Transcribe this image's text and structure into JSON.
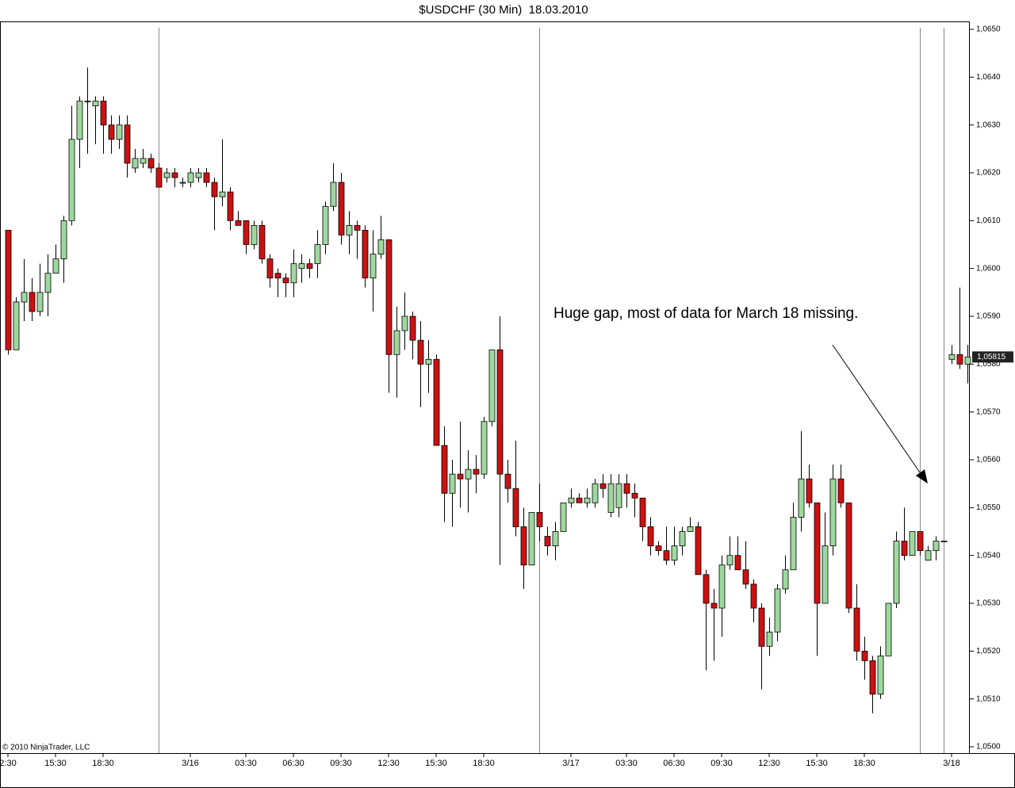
{
  "chart_data": {
    "type": "candlestick",
    "title": "$USDCHF (30 Min)  18.03.2010",
    "annotation": "Huge gap, most of data for March 18 missing.",
    "copyright": "© 2010 NinjaTrader, LLC",
    "up_color": "#9ed89e",
    "down_color": "#cc1111",
    "categories": [
      "2:30",
      null,
      null,
      null,
      null,
      null,
      "15:30",
      null,
      null,
      null,
      null,
      null,
      "18:30",
      null,
      null,
      null,
      null,
      null,
      null,
      null,
      null,
      null,
      null,
      "3/16",
      null,
      null,
      null,
      null,
      null,
      null,
      "03:30",
      null,
      null,
      null,
      null,
      null,
      "06:30",
      null,
      null,
      null,
      null,
      null,
      "09:30",
      null,
      null,
      null,
      null,
      null,
      "12:30",
      null,
      null,
      null,
      null,
      null,
      "15:30",
      null,
      null,
      null,
      null,
      null,
      "18:30",
      null,
      null,
      null,
      null,
      null,
      null,
      null,
      null,
      null,
      null,
      "3/17",
      null,
      null,
      null,
      null,
      null,
      null,
      "03:30",
      null,
      null,
      null,
      null,
      null,
      "06:30",
      null,
      null,
      null,
      null,
      null,
      "09:30",
      null,
      null,
      null,
      null,
      null,
      "12:30",
      null,
      null,
      null,
      null,
      null,
      "15:30",
      null,
      null,
      null,
      null,
      null,
      "18:30",
      null,
      null,
      null,
      null,
      null,
      null,
      null,
      null,
      null,
      null,
      "3/18",
      null,
      null
    ],
    "open": [
      1.0608,
      1.0583,
      1.0593,
      1.0595,
      1.0591,
      1.0595,
      1.0599,
      1.0602,
      1.061,
      1.0627,
      1.0635,
      1.0634,
      1.0635,
      1.063,
      1.0627,
      1.063,
      1.0621,
      1.0622,
      1.0623,
      1.0621,
      1.0619,
      1.062,
      1.0618,
      1.0618,
      1.0619,
      1.062,
      1.0618,
      1.0615,
      1.0616,
      1.061,
      1.061,
      1.0605,
      1.0609,
      1.0602,
      1.0599,
      1.0598,
      1.0597,
      1.06,
      1.0601,
      1.0601,
      1.0605,
      1.0613,
      1.0618,
      1.0607,
      1.0609,
      1.0608,
      1.0598,
      1.0603,
      1.0606,
      1.0582,
      1.0587,
      1.059,
      1.0585,
      1.058,
      1.0581,
      1.0563,
      1.0553,
      1.0557,
      1.0556,
      1.0558,
      1.0557,
      1.0568,
      1.0583,
      1.0557,
      1.0554,
      1.0546,
      1.0538,
      1.0549,
      1.0544,
      1.0542,
      1.0545,
      1.0551,
      1.0552,
      1.0551,
      1.0551,
      1.0555,
      1.0549,
      1.055,
      1.0555,
      1.0553,
      1.0552,
      1.0546,
      1.0542,
      1.0541,
      1.0539,
      1.0542,
      1.0545,
      1.0546,
      1.0536,
      1.053,
      1.0529,
      1.0538,
      1.054,
      1.0537,
      1.0534,
      1.0529,
      1.0521,
      1.0524,
      1.0533,
      1.0537,
      1.0548,
      1.0556,
      1.0551,
      1.053,
      1.0542,
      1.0556,
      1.0551,
      1.0529,
      1.052,
      1.0518,
      1.0511,
      1.0519,
      1.053,
      1.0543,
      1.054,
      1.0545,
      1.0539,
      1.0541,
      1.0543,
      1.0581,
      1.0582,
      1.058
    ],
    "high": [
      1.0608,
      1.0594,
      1.0602,
      1.0598,
      1.0601,
      1.0603,
      1.0605,
      1.0611,
      1.0634,
      1.0636,
      1.0642,
      1.0636,
      1.0636,
      1.0632,
      1.0632,
      1.0632,
      1.0625,
      1.0625,
      1.0624,
      1.0622,
      1.0621,
      1.0621,
      1.0619,
      1.0621,
      1.0621,
      1.0621,
      1.0619,
      1.0627,
      1.0617,
      1.0612,
      1.061,
      1.061,
      1.061,
      1.0603,
      1.06,
      1.0599,
      1.0604,
      1.0603,
      1.0602,
      1.0608,
      1.0614,
      1.0622,
      1.062,
      1.0612,
      1.061,
      1.0609,
      1.0608,
      1.0611,
      1.0606,
      1.0592,
      1.0595,
      1.0591,
      1.0589,
      1.0585,
      1.0582,
      1.0567,
      1.056,
      1.0568,
      1.0562,
      1.0561,
      1.0569,
      1.0583,
      1.059,
      1.056,
      1.0564,
      1.055,
      1.0549,
      1.0555,
      1.0546,
      1.0547,
      1.0551,
      1.0554,
      1.0553,
      1.0554,
      1.0556,
      1.0557,
      1.0557,
      1.0557,
      1.0557,
      1.0555,
      1.0552,
      1.0548,
      1.0543,
      1.0546,
      1.0546,
      1.0546,
      1.0548,
      1.0547,
      1.0537,
      1.0533,
      1.054,
      1.0544,
      1.0544,
      1.0543,
      1.0535,
      1.053,
      1.0527,
      1.0534,
      1.054,
      1.0551,
      1.0566,
      1.0559,
      1.0551,
      1.0549,
      1.0559,
      1.0559,
      1.0551,
      1.0534,
      1.0523,
      1.0519,
      1.0521,
      1.053,
      1.0545,
      1.055,
      1.0545,
      1.0545,
      1.0542,
      1.0544,
      1.0543,
      1.0584,
      1.0596,
      1.0584
    ],
    "low": [
      1.0582,
      1.0583,
      1.0589,
      1.0589,
      1.059,
      1.059,
      1.0599,
      1.0597,
      1.0609,
      1.0621,
      1.0624,
      1.0626,
      1.0624,
      1.0624,
      1.0625,
      1.0619,
      1.062,
      1.0621,
      1.062,
      1.0617,
      1.0618,
      1.0617,
      1.0617,
      1.0617,
      1.0618,
      1.0617,
      1.0608,
      1.0613,
      1.0608,
      1.0609,
      1.0603,
      1.0604,
      1.0601,
      1.0596,
      1.0594,
      1.0594,
      1.0594,
      1.0597,
      1.0598,
      1.0598,
      1.0603,
      1.0612,
      1.0605,
      1.0603,
      1.0602,
      1.0596,
      1.0591,
      1.0602,
      1.0574,
      1.0573,
      1.0583,
      1.0581,
      1.0571,
      1.0574,
      1.0563,
      1.0547,
      1.0546,
      1.055,
      1.0549,
      1.0553,
      1.0556,
      1.0567,
      1.0538,
      1.0551,
      1.0544,
      1.0533,
      1.0538,
      1.0543,
      1.054,
      1.0539,
      1.0545,
      1.055,
      1.0551,
      1.055,
      1.055,
      1.0552,
      1.0548,
      1.0548,
      1.055,
      1.0548,
      1.0543,
      1.054,
      1.054,
      1.0538,
      1.0538,
      1.054,
      1.0545,
      1.0536,
      1.0516,
      1.0518,
      1.0523,
      1.0537,
      1.0537,
      1.0533,
      1.0526,
      1.0512,
      1.0519,
      1.0522,
      1.0532,
      1.0537,
      1.0545,
      1.055,
      1.0519,
      1.053,
      1.054,
      1.055,
      1.0528,
      1.0518,
      1.0514,
      1.0507,
      1.051,
      1.0519,
      1.0529,
      1.0539,
      1.054,
      1.054,
      1.0539,
      1.0539,
      1.0543,
      1.058,
      1.0579,
      1.0576
    ],
    "close": [
      1.0583,
      1.0593,
      1.0595,
      1.0591,
      1.0595,
      1.0599,
      1.0602,
      1.061,
      1.0627,
      1.0635,
      1.0635,
      1.0635,
      1.063,
      1.0627,
      1.063,
      1.0622,
      1.0623,
      1.0623,
      1.0621,
      1.0617,
      1.062,
      1.0619,
      1.0618,
      1.062,
      1.062,
      1.0618,
      1.0615,
      1.0616,
      1.061,
      1.0609,
      1.0605,
      1.0609,
      1.0602,
      1.0598,
      1.0598,
      1.0597,
      1.0601,
      1.0601,
      1.06,
      1.0605,
      1.0613,
      1.0618,
      1.0607,
      1.0609,
      1.0608,
      1.0598,
      1.0603,
      1.0606,
      1.0582,
      1.0587,
      1.059,
      1.0585,
      1.058,
      1.0581,
      1.0563,
      1.0553,
      1.0557,
      1.0556,
      1.0558,
      1.0557,
      1.0568,
      1.0583,
      1.0557,
      1.0554,
      1.0546,
      1.0538,
      1.0549,
      1.0546,
      1.0542,
      1.0545,
      1.0551,
      1.0552,
      1.0551,
      1.0552,
      1.0555,
      1.0554,
      1.0555,
      1.0555,
      1.0553,
      1.0552,
      1.0546,
      1.0542,
      1.0541,
      1.0539,
      1.0542,
      1.0545,
      1.0546,
      1.0536,
      1.053,
      1.0529,
      1.0538,
      1.054,
      1.0537,
      1.0534,
      1.0529,
      1.0521,
      1.0524,
      1.0533,
      1.0537,
      1.0548,
      1.0556,
      1.0551,
      1.053,
      1.0542,
      1.0556,
      1.0551,
      1.0529,
      1.052,
      1.0518,
      1.0511,
      1.0519,
      1.053,
      1.0543,
      1.054,
      1.0545,
      1.0541,
      1.0541,
      1.0543,
      1.0543,
      1.0582,
      1.058,
      1.05815
    ],
    "last_price": {
      "value": 1.05815,
      "label": "1,05815"
    },
    "ylim": [
      1.05,
      1.065
    ],
    "yticks": [
      {
        "value": 1.05,
        "label": "1,0500"
      },
      {
        "value": 1.051,
        "label": "1,0510"
      },
      {
        "value": 1.052,
        "label": "1,0520"
      },
      {
        "value": 1.053,
        "label": "1,0530"
      },
      {
        "value": 1.054,
        "label": "1,0540"
      },
      {
        "value": 1.055,
        "label": "1,0550"
      },
      {
        "value": 1.056,
        "label": "1,0560"
      },
      {
        "value": 1.057,
        "label": "1,0570"
      },
      {
        "value": 1.058,
        "label": "1,0580"
      },
      {
        "value": 1.059,
        "label": "1,0590"
      },
      {
        "value": 1.06,
        "label": "1,0600"
      },
      {
        "value": 1.061,
        "label": "1,0610"
      },
      {
        "value": 1.062,
        "label": "1,0620"
      },
      {
        "value": 1.063,
        "label": "1,0630"
      },
      {
        "value": 1.064,
        "label": "1,0640"
      },
      {
        "value": 1.065,
        "label": "1,0650"
      }
    ],
    "grid": false
  }
}
